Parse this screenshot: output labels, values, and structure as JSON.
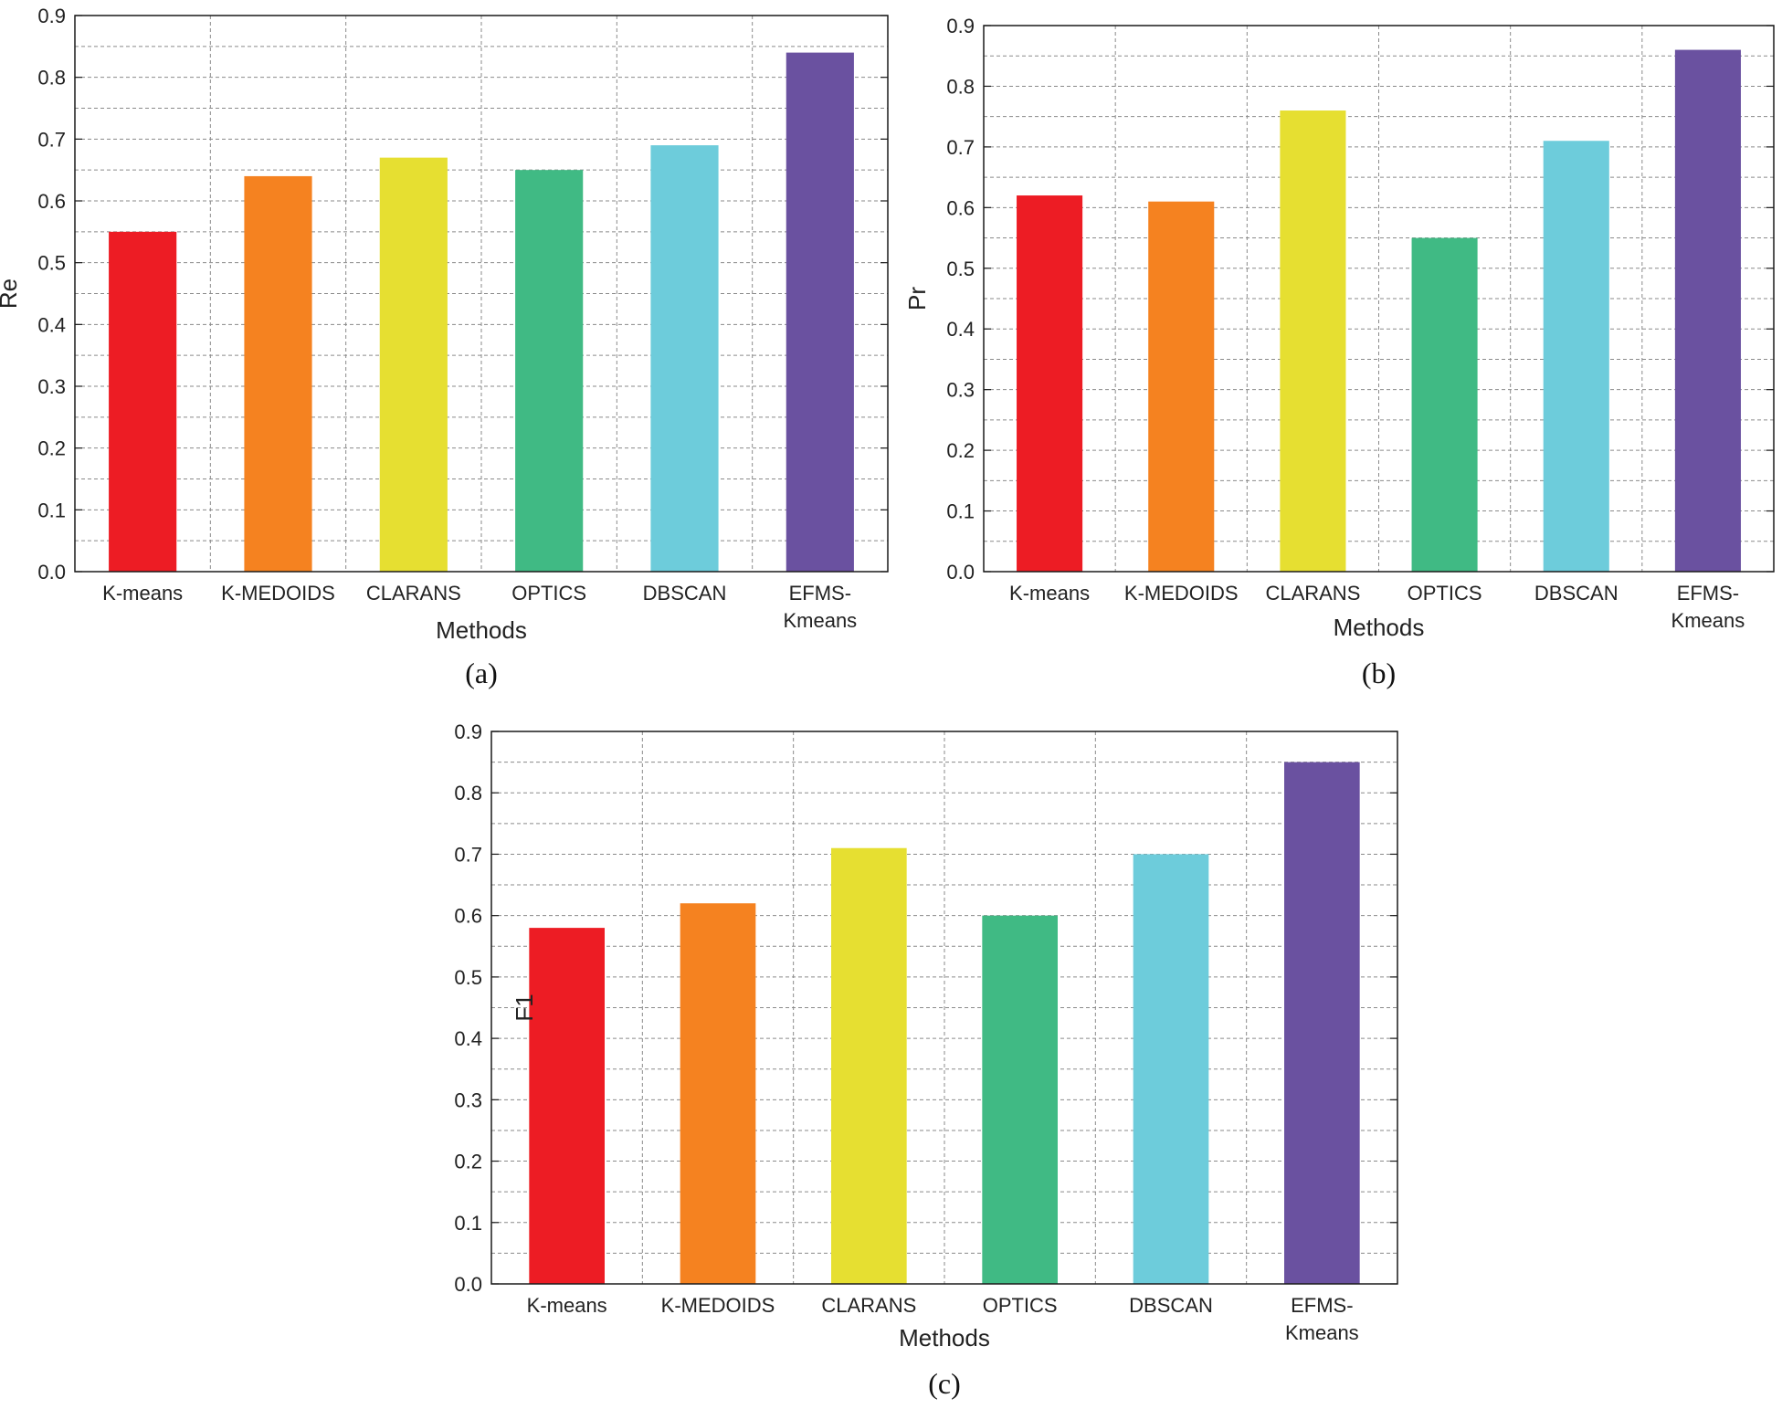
{
  "chart_data": [
    {
      "id": "a",
      "type": "bar",
      "panel_label": "(a)",
      "categories": [
        "K-means",
        "K-MEDOIDS",
        "CLARANS",
        "OPTICS",
        "DBSCAN",
        "EFMS-\nKmeans"
      ],
      "values": [
        0.55,
        0.64,
        0.67,
        0.65,
        0.69,
        0.84
      ],
      "colors": [
        "#ED1C24",
        "#F58220",
        "#E6DF31",
        "#40BA84",
        "#6DCCDB",
        "#6A51A0"
      ],
      "xlabel": "Methods",
      "ylabel": "Re",
      "ylim": [
        0,
        0.9
      ],
      "yticks": [
        "0.0",
        "0.1",
        "0.2",
        "0.3",
        "0.4",
        "0.5",
        "0.6",
        "0.7",
        "0.8",
        "0.9"
      ],
      "grid": true
    },
    {
      "id": "b",
      "type": "bar",
      "panel_label": "(b)",
      "categories": [
        "K-means",
        "K-MEDOIDS",
        "CLARANS",
        "OPTICS",
        "DBSCAN",
        "EFMS-\nKmeans"
      ],
      "values": [
        0.62,
        0.61,
        0.76,
        0.55,
        0.71,
        0.86
      ],
      "colors": [
        "#ED1C24",
        "#F58220",
        "#E6DF31",
        "#40BA84",
        "#6DCCDB",
        "#6A51A0"
      ],
      "xlabel": "Methods",
      "ylabel": "Pr",
      "ylim": [
        0,
        0.9
      ],
      "yticks": [
        "0.0",
        "0.1",
        "0.2",
        "0.3",
        "0.4",
        "0.5",
        "0.6",
        "0.7",
        "0.8",
        "0.9"
      ],
      "grid": true
    },
    {
      "id": "c",
      "type": "bar",
      "panel_label": "(c)",
      "categories": [
        "K-means",
        "K-MEDOIDS",
        "CLARANS",
        "OPTICS",
        "DBSCAN",
        "EFMS-\nKmeans"
      ],
      "values": [
        0.58,
        0.62,
        0.71,
        0.6,
        0.7,
        0.85
      ],
      "colors": [
        "#ED1C24",
        "#F58220",
        "#E6DF31",
        "#40BA84",
        "#6DCCDB",
        "#6A51A0"
      ],
      "xlabel": "Methods",
      "ylabel": "F1",
      "ylim": [
        0,
        0.9
      ],
      "yticks": [
        "0.0",
        "0.1",
        "0.2",
        "0.3",
        "0.4",
        "0.5",
        "0.6",
        "0.7",
        "0.8",
        "0.9"
      ],
      "grid": true
    }
  ]
}
